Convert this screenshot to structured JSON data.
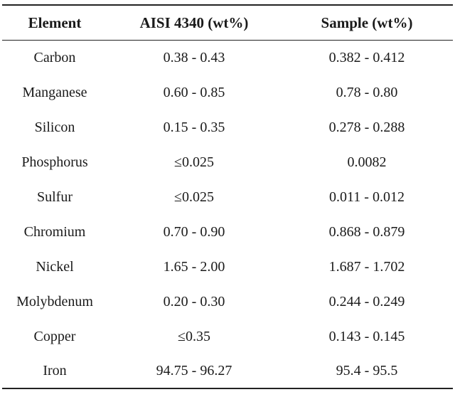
{
  "table": {
    "headers": [
      "Element",
      "AISI 4340 (wt%)",
      "Sample (wt%)"
    ],
    "rows": [
      [
        "Carbon",
        "0.38 - 0.43",
        "0.382 - 0.412"
      ],
      [
        "Manganese",
        "0.60 - 0.85",
        "0.78 - 0.80"
      ],
      [
        "Silicon",
        "0.15 - 0.35",
        "0.278 - 0.288"
      ],
      [
        "Phosphorus",
        "≤0.025",
        "0.0082"
      ],
      [
        "Sulfur",
        "≤0.025",
        "0.011 - 0.012"
      ],
      [
        "Chromium",
        "0.70 - 0.90",
        "0.868 - 0.879"
      ],
      [
        "Nickel",
        "1.65 - 2.00",
        "1.687 - 1.702"
      ],
      [
        "Molybdenum",
        "0.20 - 0.30",
        "0.244 - 0.249"
      ],
      [
        "Copper",
        "≤0.35",
        "0.143 - 0.145"
      ],
      [
        "Iron",
        "94.75 - 96.27",
        "95.4 - 95.5"
      ]
    ]
  }
}
